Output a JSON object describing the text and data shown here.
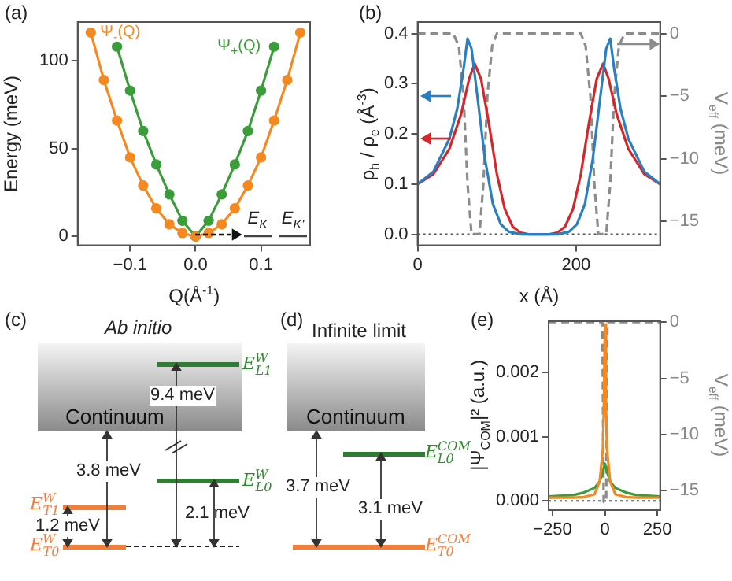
{
  "chart_data": [
    {
      "type": "line",
      "xlabel": "Q(Å$^{-1}$)",
      "ylabel": "Energy (meV)",
      "xlim": [
        -0.18,
        0.175
      ],
      "xticks": [
        {
          "value": -0.1,
          "label": "−0.1"
        },
        {
          "value": 0,
          "label": "0.0"
        },
        {
          "value": 0.1,
          "label": "0.1"
        }
      ],
      "ylim": [
        -5,
        122
      ],
      "yticks": [
        0,
        50,
        100
      ],
      "marker": "circle",
      "grid": false,
      "series": [
        {
          "name": "Ψ$_{-}$(Q)",
          "color": "#f5891f",
          "x": [
            -0.16,
            -0.14,
            -0.12,
            -0.1,
            -0.08,
            -0.06,
            -0.04,
            -0.02,
            0,
            0.02,
            0.04,
            0.06,
            0.08,
            0.1,
            0.12,
            0.14,
            0.16
          ],
          "values": [
            116,
            89,
            66,
            45,
            29,
            16,
            7,
            2,
            0,
            2,
            7,
            16,
            29,
            45,
            66,
            89,
            116
          ]
        },
        {
          "name": "Ψ$_{+}$(Q)",
          "color": "#3a9d3a",
          "x": [
            -0.12,
            -0.1,
            -0.08,
            -0.06,
            -0.04,
            -0.02,
            0,
            0.02,
            0.04,
            0.06,
            0.08,
            0.1,
            0.12
          ],
          "values": [
            108,
            83,
            60,
            41,
            24,
            9,
            0,
            9,
            24,
            41,
            60,
            83,
            108
          ]
        }
      ],
      "annotations": [
        "(a)",
        "E$_{K}$",
        "E$_{K'}$"
      ]
    },
    {
      "type": "line",
      "xlabel": "x (Å)",
      "ylabel": "ρ$_{h}$ / ρ$_{e}$ (Å$^{-3}$)",
      "y2label": "V$_{eff}$ (meV)",
      "xlim": [
        0,
        306
      ],
      "xticks": [
        0,
        200
      ],
      "ylim": [
        -0.022,
        0.423
      ],
      "yticks": [
        {
          "value": 0,
          "label": "0.0"
        },
        {
          "value": 0.1,
          "label": "0.1"
        },
        {
          "value": 0.2,
          "label": "0.2"
        },
        {
          "value": 0.3,
          "label": "0.3"
        },
        {
          "value": 0.4,
          "label": "0.4"
        }
      ],
      "y2lim": [
        -16.9,
        0.92
      ],
      "y2ticks": [
        0,
        {
          "value": -5,
          "label": "−5"
        },
        {
          "value": -10,
          "label": "−10"
        },
        {
          "value": -15,
          "label": "−15"
        }
      ],
      "grid": false,
      "ref_lines": [
        {
          "axis": "y",
          "value": 0,
          "line_style": "dotted",
          "color": "#555555"
        }
      ],
      "series": [
        {
          "color": "#2a7fc1",
          "x": [
            0,
            20,
            40,
            50,
            58,
            63,
            68,
            75,
            85,
            95,
            105,
            115,
            130,
            153,
            176,
            191,
            201,
            211,
            221,
            231,
            238,
            243,
            248,
            256,
            266,
            286,
            306
          ],
          "values": [
            0.1,
            0.125,
            0.19,
            0.25,
            0.33,
            0.39,
            0.37,
            0.28,
            0.15,
            0.06,
            0.02,
            0.005,
            0,
            0,
            0,
            0.005,
            0.02,
            0.06,
            0.15,
            0.28,
            0.37,
            0.39,
            0.33,
            0.25,
            0.19,
            0.125,
            0.1
          ]
        },
        {
          "color": "#d7262b",
          "x": [
            0,
            20,
            40,
            55,
            65,
            72,
            80,
            90,
            100,
            110,
            120,
            130,
            140,
            153,
            166,
            176,
            186,
            196,
            206,
            216,
            226,
            234,
            241,
            251,
            266,
            286,
            306
          ],
          "values": [
            0.1,
            0.12,
            0.17,
            0.24,
            0.31,
            0.34,
            0.31,
            0.22,
            0.12,
            0.05,
            0.015,
            0.003,
            0,
            0,
            0,
            0.003,
            0.015,
            0.05,
            0.12,
            0.22,
            0.31,
            0.34,
            0.31,
            0.24,
            0.17,
            0.12,
            0.1
          ]
        },
        {
          "color": "#8c8c8c",
          "axis": "y2",
          "line_style": "dashed",
          "x": [
            0,
            45,
            52,
            58,
            63,
            68,
            78,
            83,
            88,
            94,
            100,
            206,
            212,
            218,
            223,
            228,
            238,
            243,
            248,
            254,
            261,
            306
          ],
          "values": [
            0,
            0,
            -1,
            -5,
            -12,
            -16,
            -16,
            -12,
            -5,
            -1,
            0,
            0,
            -1,
            -5,
            -12,
            -16,
            -16,
            -12,
            -5,
            -1,
            0,
            0
          ]
        }
      ],
      "annotations": [
        "(b)"
      ]
    },
    {
      "type": "other",
      "title": "Ab initio",
      "annotations": [
        "(c)",
        "Continuum",
        "9.4 meV",
        "3.8 meV",
        "1.2 meV",
        "2.1 meV",
        "E$^{W}$$_{L1}$",
        "E$^{W}$$_{L0}$",
        "E$^{W}$$_{T1}$",
        "E$^{W}$$_{T0}$"
      ]
    },
    {
      "type": "other",
      "title": "Infinite limit",
      "annotations": [
        "(d)",
        "Continuum",
        "3.7 meV",
        "3.1 meV",
        "E$^{COM}$$_{L0}$",
        "E$^{COM}$$_{T0}$"
      ]
    },
    {
      "type": "line",
      "ylabel": "|Ψ$_{COM}$|² (a.u.)",
      "y2label": "V$_{eff}$ (meV)",
      "xlim": [
        -268,
        263
      ],
      "xticks": [
        {
          "value": -250,
          "label": "−250"
        },
        0,
        250
      ],
      "ylim": [
        -0.00014,
        0.0028
      ],
      "yticks": [
        {
          "value": 0,
          "label": "0.000"
        },
        {
          "value": 0.001,
          "label": "0.001"
        },
        {
          "value": 0.002,
          "label": "0.002"
        }
      ],
      "y2lim": [
        -16.7,
        0.08
      ],
      "y2ticks": [
        0,
        {
          "value": -5,
          "label": "−5"
        },
        {
          "value": -10,
          "label": "−10"
        },
        {
          "value": -15,
          "label": "−15"
        }
      ],
      "grid": false,
      "ref_lines": [
        {
          "axis": "y",
          "value": 0,
          "line_style": "dotted",
          "color": "#555555"
        }
      ],
      "series": [
        {
          "color": "#f5891f",
          "x": [
            -268,
            -150,
            -100,
            -50,
            -25,
            -10,
            -5,
            0,
            5,
            10,
            25,
            50,
            100,
            150,
            263
          ],
          "values": [
            5e-05,
            5e-05,
            6e-05,
            0.0001,
            0.0003,
            0.0008,
            0.0015,
            0.00275,
            0.0015,
            0.0008,
            0.0003,
            0.0001,
            6e-05,
            5e-05,
            5e-05
          ]
        },
        {
          "color": "#3a9d3a",
          "x": [
            -268,
            -150,
            -100,
            -50,
            -25,
            -10,
            0,
            10,
            25,
            50,
            100,
            150,
            263
          ],
          "values": [
            7e-05,
            9e-05,
            0.00013,
            0.0002,
            0.0003,
            0.00045,
            0.00058,
            0.00045,
            0.0003,
            0.0002,
            0.00013,
            9e-05,
            7e-05
          ]
        },
        {
          "color": "#8c8c8c",
          "axis": "y2",
          "line_style": "dashed",
          "x": [
            -268,
            -12,
            -6,
            6,
            12,
            263
          ],
          "values": [
            0,
            0,
            -16,
            -16,
            0,
            0
          ]
        }
      ],
      "annotations": [
        "(e)"
      ]
    }
  ]
}
